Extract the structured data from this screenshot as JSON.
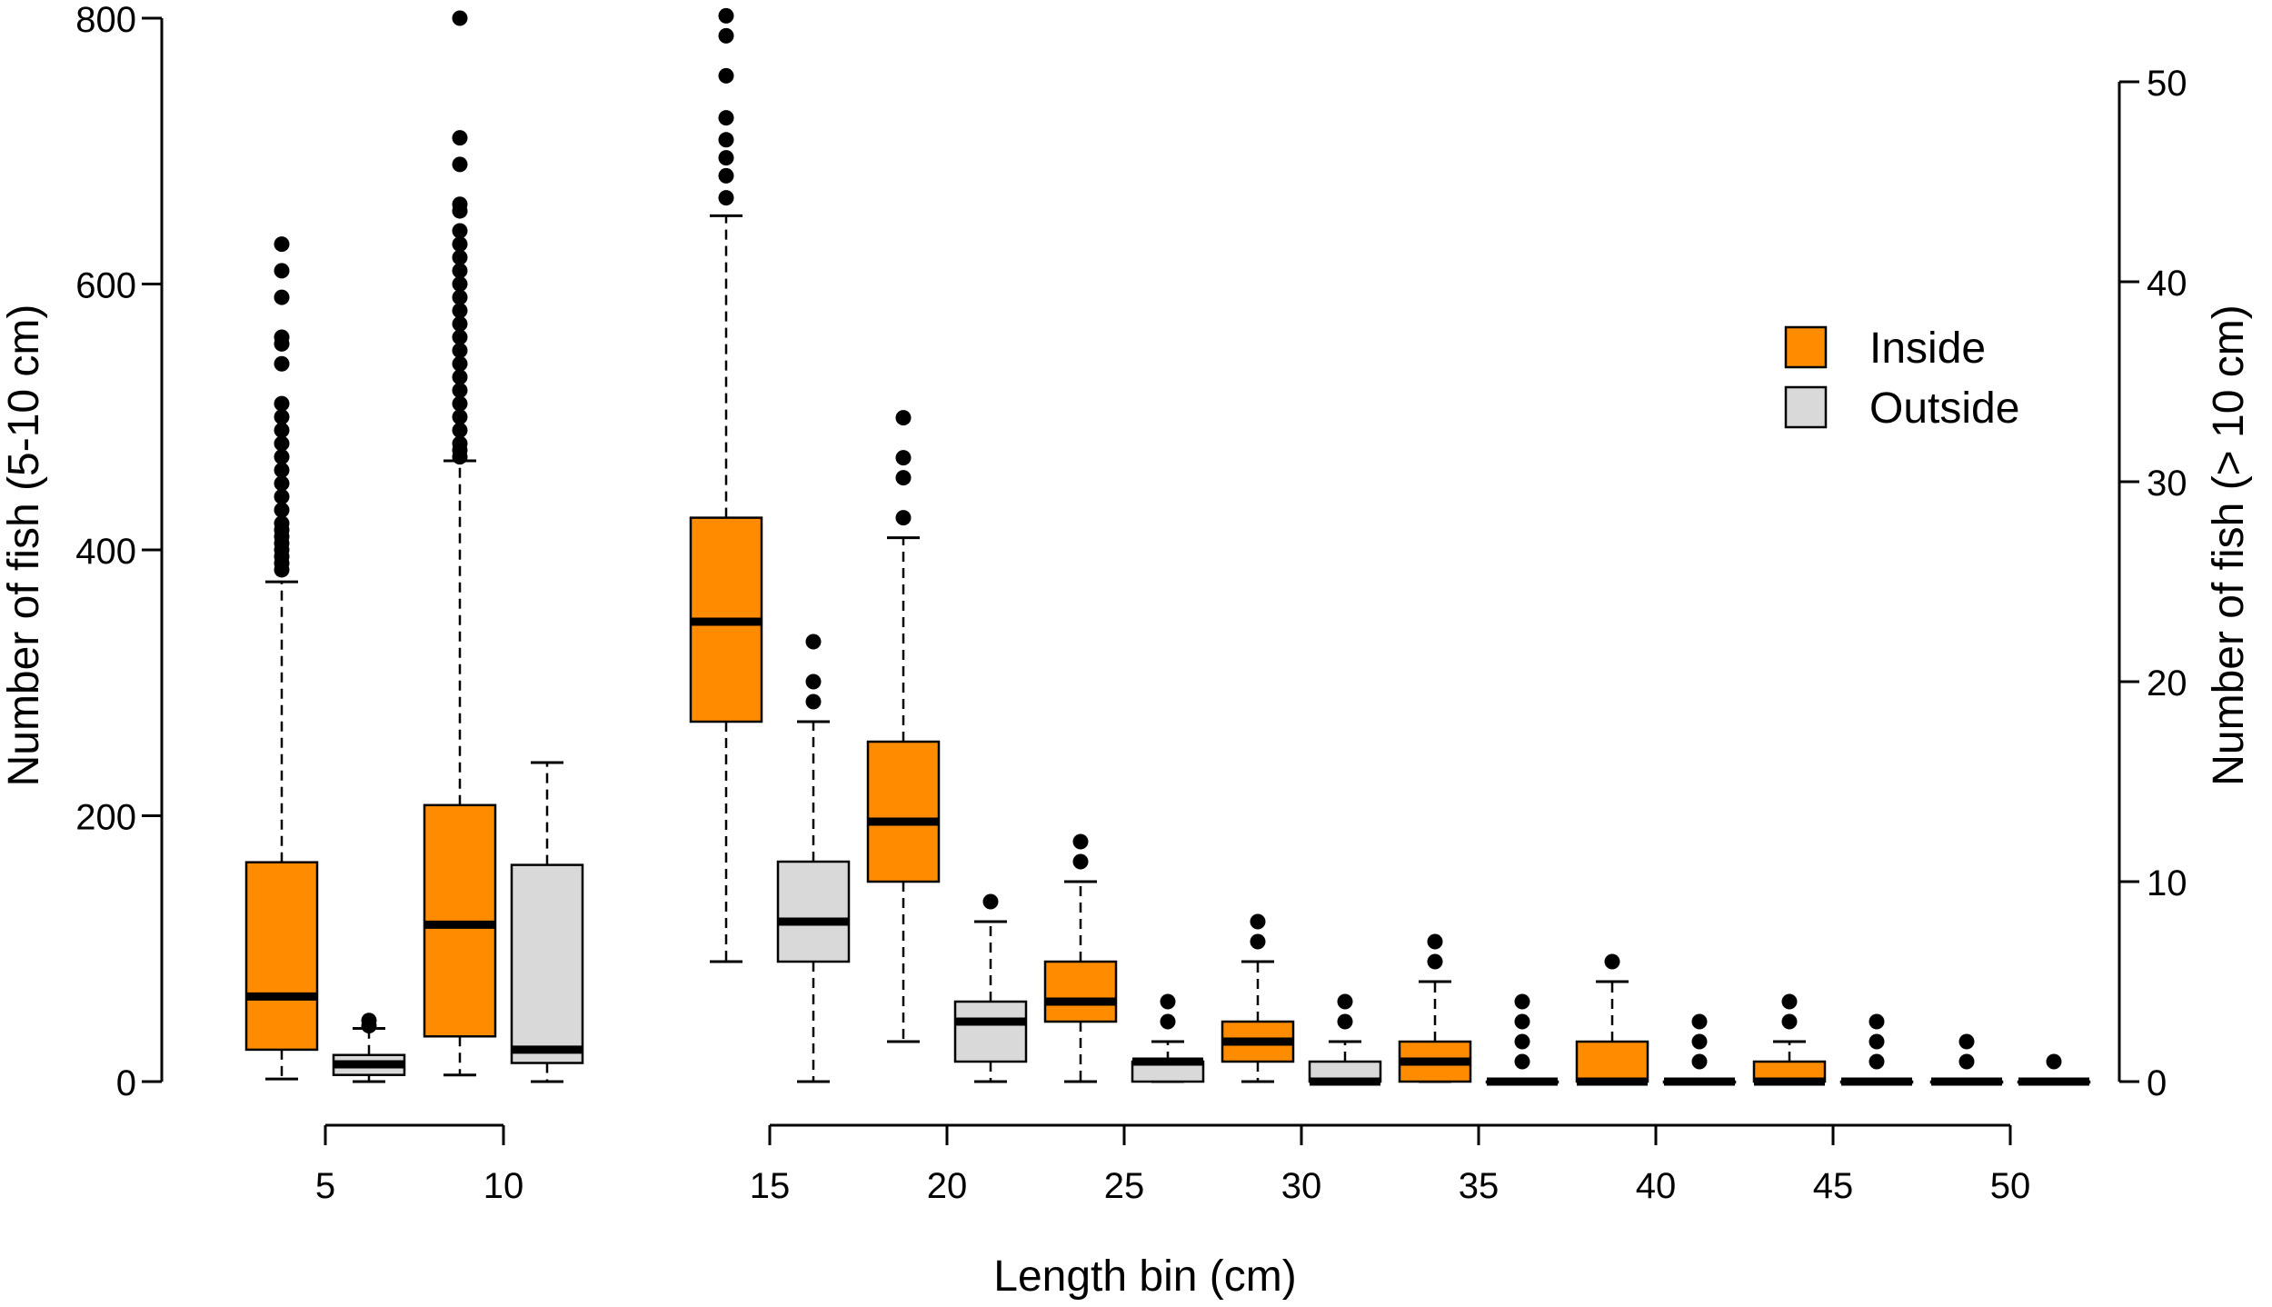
{
  "chart_data": {
    "type": "boxplot",
    "xlabel": "Length bin (cm)",
    "ylabel_left": "Number of fish (5-10 cm)",
    "ylabel_right": "Number of fish (> 10 cm)",
    "ylim_left": [
      0,
      800
    ],
    "yticks_left": [
      "0",
      "200",
      "400",
      "600",
      "800"
    ],
    "ylim_right": [
      0,
      50
    ],
    "yticks_right": [
      "0",
      "10",
      "20",
      "30",
      "40",
      "50"
    ],
    "xticks_left_group": [
      "5",
      "10"
    ],
    "xticks_right_group": [
      "15",
      "20",
      "25",
      "30",
      "35",
      "40",
      "45",
      "50"
    ],
    "legend": {
      "position": "top-right",
      "entries": [
        "Inside",
        "Outside"
      ]
    },
    "colors": {
      "Inside": "#ff8c00",
      "Outside": "#d9d9d9"
    },
    "series": [
      {
        "name": "Inside",
        "axis": "left",
        "bin": 5,
        "min": 2,
        "q1": 24,
        "median": 64,
        "q3": 165,
        "max": 376,
        "outliers": [
          385,
          390,
          395,
          400,
          405,
          410,
          415,
          420,
          430,
          440,
          450,
          460,
          470,
          480,
          490,
          500,
          510,
          540,
          555,
          560,
          590,
          610,
          630
        ]
      },
      {
        "name": "Outside",
        "axis": "left",
        "bin": 5,
        "min": 0,
        "q1": 5,
        "median": 13,
        "q3": 20,
        "max": 40,
        "outliers": [
          42,
          46
        ]
      },
      {
        "name": "Inside",
        "axis": "left",
        "bin": 10,
        "min": 5,
        "q1": 34,
        "median": 118,
        "q3": 208,
        "max": 467,
        "outliers": [
          470,
          475,
          480,
          490,
          500,
          510,
          520,
          530,
          540,
          550,
          560,
          570,
          580,
          590,
          600,
          610,
          620,
          630,
          640,
          655,
          660,
          690,
          710,
          800
        ]
      },
      {
        "name": "Outside",
        "axis": "left",
        "bin": 10,
        "min": 0,
        "q1": 14,
        "median": 24,
        "q3": 163,
        "max": 240,
        "outliers": []
      },
      {
        "name": "Inside",
        "axis": "right",
        "bin": 15,
        "min": 6,
        "q1": 18,
        "median": 23,
        "q3": 28.2,
        "max": 43.3,
        "outliers": [
          44.2,
          45.3,
          46.2,
          47.1,
          48.2,
          50.3,
          52.3,
          53.3
        ]
      },
      {
        "name": "Outside",
        "axis": "right",
        "bin": 15,
        "min": 0,
        "q1": 6,
        "median": 8,
        "q3": 11,
        "max": 18,
        "outliers": [
          19,
          20,
          22
        ]
      },
      {
        "name": "Inside",
        "axis": "right",
        "bin": 20,
        "min": 2,
        "q1": 10,
        "median": 13,
        "q3": 17,
        "max": 27.2,
        "outliers": [
          28.2,
          30.2,
          31.2,
          33.2
        ]
      },
      {
        "name": "Outside",
        "axis": "right",
        "bin": 20,
        "min": 0,
        "q1": 1,
        "median": 3,
        "q3": 4,
        "max": 8,
        "outliers": [
          9
        ]
      },
      {
        "name": "Inside",
        "axis": "right",
        "bin": 25,
        "min": 0,
        "q1": 3,
        "median": 4,
        "q3": 6,
        "max": 10,
        "outliers": [
          11,
          12
        ]
      },
      {
        "name": "Outside",
        "axis": "right",
        "bin": 25,
        "min": 0,
        "q1": 0,
        "median": 1,
        "q3": 1,
        "max": 2,
        "outliers": [
          3,
          4
        ]
      },
      {
        "name": "Inside",
        "axis": "right",
        "bin": 30,
        "min": 0,
        "q1": 1,
        "median": 2,
        "q3": 3,
        "max": 6,
        "outliers": [
          7,
          8
        ]
      },
      {
        "name": "Outside",
        "axis": "right",
        "bin": 30,
        "min": 0,
        "q1": 0,
        "median": 0,
        "q3": 1,
        "max": 2,
        "outliers": [
          3,
          4
        ]
      },
      {
        "name": "Inside",
        "axis": "right",
        "bin": 35,
        "min": 0,
        "q1": 0,
        "median": 1,
        "q3": 2,
        "max": 5,
        "outliers": [
          6,
          7
        ]
      },
      {
        "name": "Outside",
        "axis": "right",
        "bin": 35,
        "min": 0,
        "q1": 0,
        "median": 0,
        "q3": 0,
        "max": 0,
        "outliers": [
          1,
          2,
          3,
          4
        ]
      },
      {
        "name": "Inside",
        "axis": "right",
        "bin": 40,
        "min": 0,
        "q1": 0,
        "median": 0,
        "q3": 2,
        "max": 5,
        "outliers": [
          6
        ]
      },
      {
        "name": "Outside",
        "axis": "right",
        "bin": 40,
        "min": 0,
        "q1": 0,
        "median": 0,
        "q3": 0,
        "max": 0,
        "outliers": [
          1,
          2,
          3
        ]
      },
      {
        "name": "Inside",
        "axis": "right",
        "bin": 45,
        "min": 0,
        "q1": 0,
        "median": 0,
        "q3": 1,
        "max": 2,
        "outliers": [
          3,
          4
        ]
      },
      {
        "name": "Outside",
        "axis": "right",
        "bin": 45,
        "min": 0,
        "q1": 0,
        "median": 0,
        "q3": 0,
        "max": 0,
        "outliers": [
          1,
          2,
          3
        ]
      },
      {
        "name": "Inside",
        "axis": "right",
        "bin": 50,
        "min": 0,
        "q1": 0,
        "median": 0,
        "q3": 0,
        "max": 0,
        "outliers": [
          1,
          2
        ]
      },
      {
        "name": "Outside",
        "axis": "right",
        "bin": 50,
        "min": 0,
        "q1": 0,
        "median": 0,
        "q3": 0,
        "max": 0,
        "outliers": [
          1
        ]
      }
    ]
  }
}
